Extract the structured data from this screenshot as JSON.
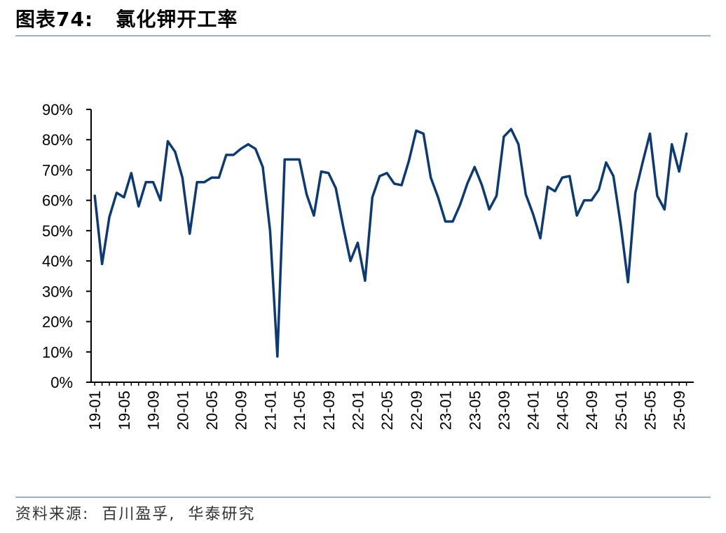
{
  "figure": {
    "title": "图表74:   氯化钾开工率",
    "source": "资料来源:  百川盈孚,  华泰研究"
  },
  "colors": {
    "line": "#0b3a74",
    "axis": "#000000",
    "rule": "#9fb2c6"
  },
  "chart_data": {
    "type": "line",
    "title": "",
    "xlabel": "",
    "ylabel": "",
    "ylim": [
      0,
      90
    ],
    "y_ticks": [
      "0%",
      "10%",
      "20%",
      "30%",
      "40%",
      "50%",
      "60%",
      "70%",
      "80%",
      "90%"
    ],
    "x_ticks": [
      "19-01",
      "19-05",
      "19-09",
      "20-01",
      "20-05",
      "20-09",
      "21-01",
      "21-05",
      "21-09",
      "22-01",
      "22-05",
      "22-09",
      "23-01",
      "23-05",
      "23-09",
      "24-01",
      "24-05",
      "24-09",
      "25-01",
      "25-05",
      "25-09"
    ],
    "grid": false,
    "legend": "none",
    "series": [
      {
        "name": "",
        "x": [
          "19-01",
          "19-02",
          "19-03",
          "19-04",
          "19-05",
          "19-06",
          "19-07",
          "19-08",
          "19-09",
          "19-10",
          "19-11",
          "19-12",
          "20-01",
          "20-02",
          "20-03",
          "20-04",
          "20-05",
          "20-06",
          "20-07",
          "20-08",
          "20-09",
          "20-10",
          "20-11",
          "20-12",
          "21-01",
          "21-02",
          "21-03",
          "21-04",
          "21-05",
          "21-06",
          "21-07",
          "21-08",
          "21-09",
          "21-10",
          "21-11",
          "21-12",
          "22-01",
          "22-02",
          "22-03",
          "22-04",
          "22-05",
          "22-06",
          "22-07",
          "22-08",
          "22-09",
          "22-10",
          "22-11",
          "22-12",
          "23-01",
          "23-02",
          "23-03",
          "23-04",
          "23-05",
          "23-06",
          "23-07",
          "23-08",
          "23-09",
          "23-10",
          "23-11",
          "23-12",
          "24-01",
          "24-02",
          "24-03",
          "24-04",
          "24-05",
          "24-06",
          "24-07",
          "24-08",
          "24-09",
          "24-10",
          "24-11",
          "24-12",
          "25-01",
          "25-02",
          "25-03",
          "25-04",
          "25-05",
          "25-06",
          "25-07",
          "25-08",
          "25-09",
          "25-10"
        ],
        "values": [
          61.5,
          39,
          54.5,
          62.5,
          61,
          69,
          58,
          66,
          66,
          60,
          79.5,
          76,
          67.5,
          49,
          66,
          66,
          67.5,
          67.5,
          75,
          75,
          77,
          78.5,
          77,
          71,
          50,
          8.5,
          73.5,
          73.5,
          73.5,
          62,
          55,
          69.5,
          69,
          64,
          51.5,
          40,
          46,
          33.5,
          61,
          68,
          69,
          65.5,
          65,
          73,
          83,
          82,
          67.5,
          61,
          53,
          53,
          58.5,
          65.5,
          71,
          65,
          57,
          61.5,
          81,
          83.5,
          78.5,
          62,
          55.5,
          47.5,
          64.5,
          63,
          67.5,
          68,
          55,
          60,
          60,
          63.5,
          72.5,
          68,
          52,
          33,
          62.5,
          72.5,
          82,
          61.5,
          57,
          78.5,
          69.5,
          82
        ]
      }
    ]
  }
}
